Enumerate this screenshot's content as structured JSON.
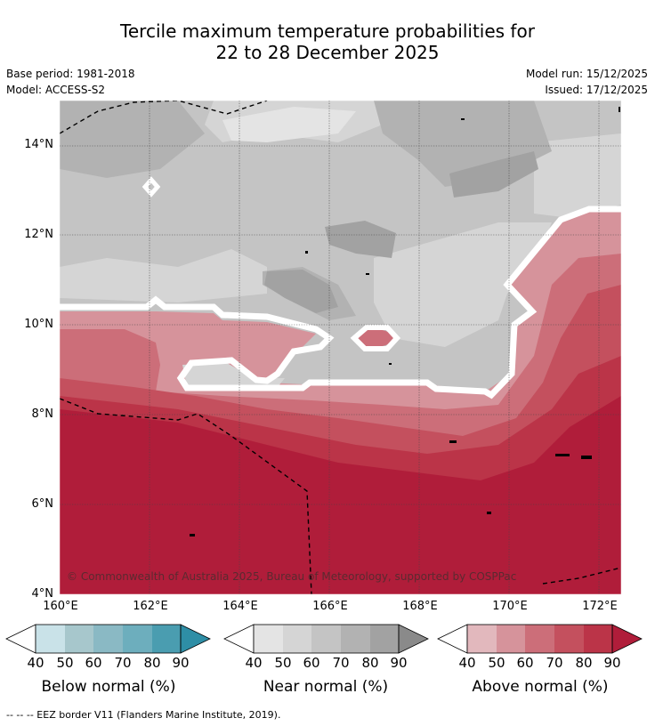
{
  "title_line1": "Tercile maximum temperature probabilities for",
  "title_line2": "22 to 28 December 2025",
  "base_period": "Base period: 1981-2018",
  "model": "Model: ACCESS-S2",
  "model_run": "Model run: 15/12/2025",
  "issued": "Issued: 17/12/2025",
  "map": {
    "lat_labels": [
      "14°N",
      "12°N",
      "10°N",
      "8°N",
      "6°N",
      "4°N"
    ],
    "lon_labels": [
      "160°E",
      "162°E",
      "164°E",
      "166°E",
      "168°E",
      "170°E",
      "172°E"
    ],
    "copyright": "© Commonwealth of Australia 2025, Bureau of Meteorology, supported by COSPPac",
    "extent": {
      "lon": [
        160,
        172.5
      ],
      "lat": [
        4,
        15
      ]
    }
  },
  "colorbars": [
    {
      "label": "Below normal (%)",
      "ticks": [
        "40",
        "50",
        "60",
        "70",
        "80",
        "90"
      ],
      "colors": [
        "#c9e2e8",
        "#a7c7cc",
        "#8ab9c4",
        "#6daebd",
        "#4a9db0",
        "#2e8ea6"
      ]
    },
    {
      "label": "Near normal (%)",
      "ticks": [
        "40",
        "50",
        "60",
        "70",
        "80",
        "90"
      ],
      "colors": [
        "#e4e4e4",
        "#d5d5d5",
        "#c4c4c4",
        "#b2b2b2",
        "#a2a2a2",
        "#8a8a8a"
      ]
    },
    {
      "label": "Above normal (%)",
      "ticks": [
        "40",
        "50",
        "60",
        "70",
        "80",
        "90"
      ],
      "colors": [
        "#e2b8bd",
        "#d6939b",
        "#cc6e79",
        "#c4505e",
        "#bb3448",
        "#b01d3a"
      ]
    }
  ],
  "footer": "--  --  -- EEZ border V11 (Flanders Marine Institute, 2019)."
}
